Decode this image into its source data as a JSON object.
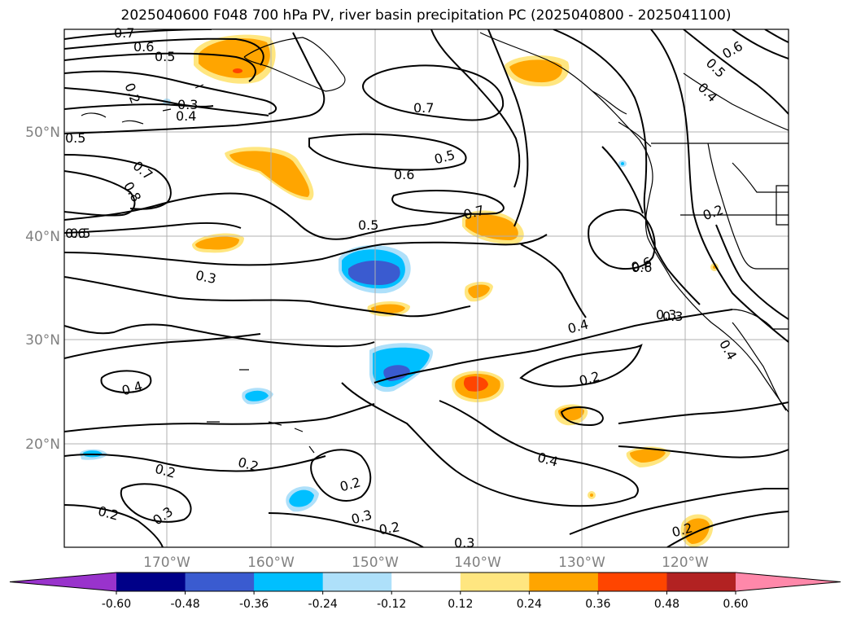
{
  "title": "2025040600 F048 700 hPa PV, river basin precipitation PC (2025040800 - 2025041100)",
  "lat_labels": [
    "50°N",
    "40°N",
    "30°N",
    "20°N"
  ],
  "lon_labels": [
    "170°W",
    "160°W",
    "150°W",
    "140°W",
    "130°W",
    "120°W"
  ],
  "contour_labels": [
    "0.7",
    "0.6",
    "0.5",
    "0.2",
    "0.3",
    "0.4",
    "0.5",
    "0.7",
    "0.5",
    "0.6",
    "0.7",
    "0.8",
    "0.5",
    "0.7",
    "0.6",
    "0.3",
    "0.6",
    "0.5",
    "0.4",
    "0.3",
    "0.4",
    "0.2",
    "0.4",
    "0.2",
    "0.2",
    "0.4",
    "0.2",
    "0.2",
    "0.3",
    "0.3",
    "0.2",
    "0.3",
    "0.2",
    "0.2",
    "0.3",
    "0.6",
    "0.5",
    "0.4",
    "0.6"
  ],
  "colorbar": {
    "ticks": [
      "-0.60",
      "-0.48",
      "-0.36",
      "-0.24",
      "-0.12",
      "0.12",
      "0.24",
      "0.36",
      "0.48",
      "0.60"
    ],
    "colors": [
      "#9933cc",
      "#000088",
      "#3a5bd0",
      "#00bfff",
      "#aee0fa",
      "#ffffff",
      "#ffe680",
      "#ffa500",
      "#ff4500",
      "#b22222",
      "#ff88aa"
    ]
  },
  "colors": {
    "grid": "#b0b0b0",
    "contour": "#000000",
    "coast": "#000000"
  }
}
